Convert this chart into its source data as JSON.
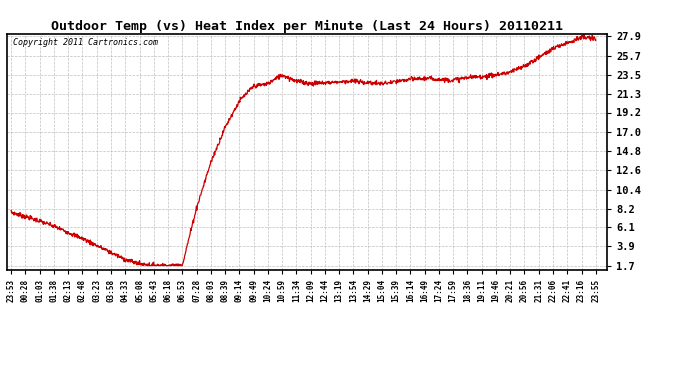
{
  "title": "Outdoor Temp (vs) Heat Index per Minute (Last 24 Hours) 20110211",
  "copyright_text": "Copyright 2011 Cartronics.com",
  "line_color": "#cc0000",
  "background_color": "#ffffff",
  "grid_color": "#b0b0b0",
  "border_color": "#000000",
  "yticks": [
    1.7,
    3.9,
    6.1,
    8.2,
    10.4,
    12.6,
    14.8,
    17.0,
    19.2,
    21.3,
    23.5,
    25.7,
    27.9
  ],
  "ylim_min": 1.7,
  "ylim_max": 27.9,
  "xtick_labels": [
    "23:53",
    "00:28",
    "01:03",
    "01:38",
    "02:13",
    "02:48",
    "03:23",
    "03:58",
    "04:33",
    "05:08",
    "05:43",
    "06:18",
    "06:53",
    "07:28",
    "08:03",
    "08:39",
    "09:14",
    "09:49",
    "10:24",
    "10:59",
    "11:34",
    "12:09",
    "12:44",
    "13:19",
    "13:54",
    "14:29",
    "15:04",
    "15:39",
    "16:14",
    "16:49",
    "17:24",
    "17:59",
    "18:36",
    "19:11",
    "19:46",
    "20:21",
    "20:56",
    "21:31",
    "22:06",
    "22:41",
    "23:16",
    "23:55"
  ],
  "curve_keypoints_x": [
    0,
    1,
    2,
    3,
    4,
    5,
    6,
    7,
    8,
    9,
    10,
    11,
    12,
    13,
    14,
    15,
    16,
    17,
    18,
    19,
    20,
    21,
    22,
    23,
    24,
    25,
    26,
    27,
    28,
    29,
    30,
    31,
    32,
    33,
    34,
    35,
    36,
    37,
    38,
    39,
    40,
    41
  ],
  "curve_keypoints_y": [
    7.8,
    7.3,
    6.8,
    6.2,
    5.5,
    4.8,
    4.0,
    3.2,
    2.4,
    1.9,
    1.75,
    1.7,
    1.75,
    8.3,
    13.5,
    17.5,
    20.5,
    22.2,
    22.5,
    23.5,
    22.8,
    22.5,
    22.6,
    22.7,
    22.8,
    22.6,
    22.5,
    22.7,
    23.0,
    23.1,
    23.0,
    22.9,
    23.2,
    23.3,
    23.5,
    23.8,
    24.5,
    25.5,
    26.5,
    27.2,
    27.8,
    27.6
  ]
}
